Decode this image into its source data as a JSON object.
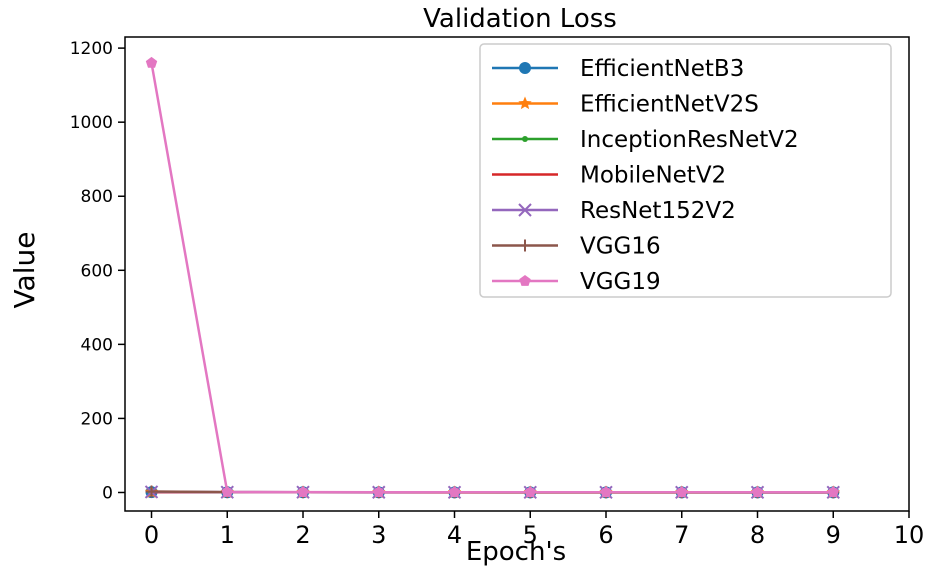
{
  "chart_data": {
    "type": "line",
    "title": "Validation Loss",
    "xlabel": "Epoch's",
    "ylabel": "Value",
    "x": [
      0,
      1,
      2,
      3,
      4,
      5,
      6,
      7,
      8,
      9
    ],
    "xlim": [
      -0.35,
      10
    ],
    "ylim": [
      -50,
      1230
    ],
    "xticks": [
      0,
      1,
      2,
      3,
      4,
      5,
      6,
      7,
      8,
      9,
      10
    ],
    "yticks": [
      0,
      200,
      400,
      600,
      800,
      1000,
      1200
    ],
    "grid": false,
    "legend_position": "top-right",
    "series": [
      {
        "name": "EfficientNetB3",
        "color": "#1f77b4",
        "marker": "circle",
        "values": [
          0.9,
          0.6,
          0.5,
          0.45,
          0.4,
          0.38,
          0.36,
          0.35,
          0.34,
          0.33
        ]
      },
      {
        "name": "EfficientNetV2S",
        "color": "#ff7f0e",
        "marker": "star",
        "values": [
          1.2,
          0.8,
          0.6,
          0.5,
          0.45,
          0.42,
          0.4,
          0.38,
          0.37,
          0.36
        ]
      },
      {
        "name": "InceptionResNetV2",
        "color": "#2ca02c",
        "marker": "point",
        "values": [
          1.0,
          0.7,
          0.55,
          0.5,
          0.46,
          0.44,
          0.42,
          0.4,
          0.39,
          0.38
        ]
      },
      {
        "name": "MobileNetV2",
        "color": "#d62728",
        "marker": "none",
        "values": [
          0.8,
          0.6,
          0.5,
          0.45,
          0.42,
          0.4,
          0.39,
          0.38,
          0.37,
          0.36
        ]
      },
      {
        "name": "ResNet152V2",
        "color": "#9467bd",
        "marker": "x",
        "values": [
          1.5,
          0.9,
          0.7,
          0.6,
          0.55,
          0.5,
          0.48,
          0.46,
          0.45,
          0.44
        ]
      },
      {
        "name": "VGG16",
        "color": "#8c564b",
        "marker": "plus",
        "values": [
          2.5,
          1.0,
          0.8,
          0.7,
          0.6,
          0.55,
          0.52,
          0.5,
          0.48,
          0.47
        ]
      },
      {
        "name": "VGG19",
        "color": "#e377c2",
        "marker": "pentagon",
        "values": [
          1160,
          1.2,
          0.9,
          0.8,
          0.7,
          0.65,
          0.6,
          0.58,
          0.56,
          0.55
        ]
      }
    ]
  }
}
